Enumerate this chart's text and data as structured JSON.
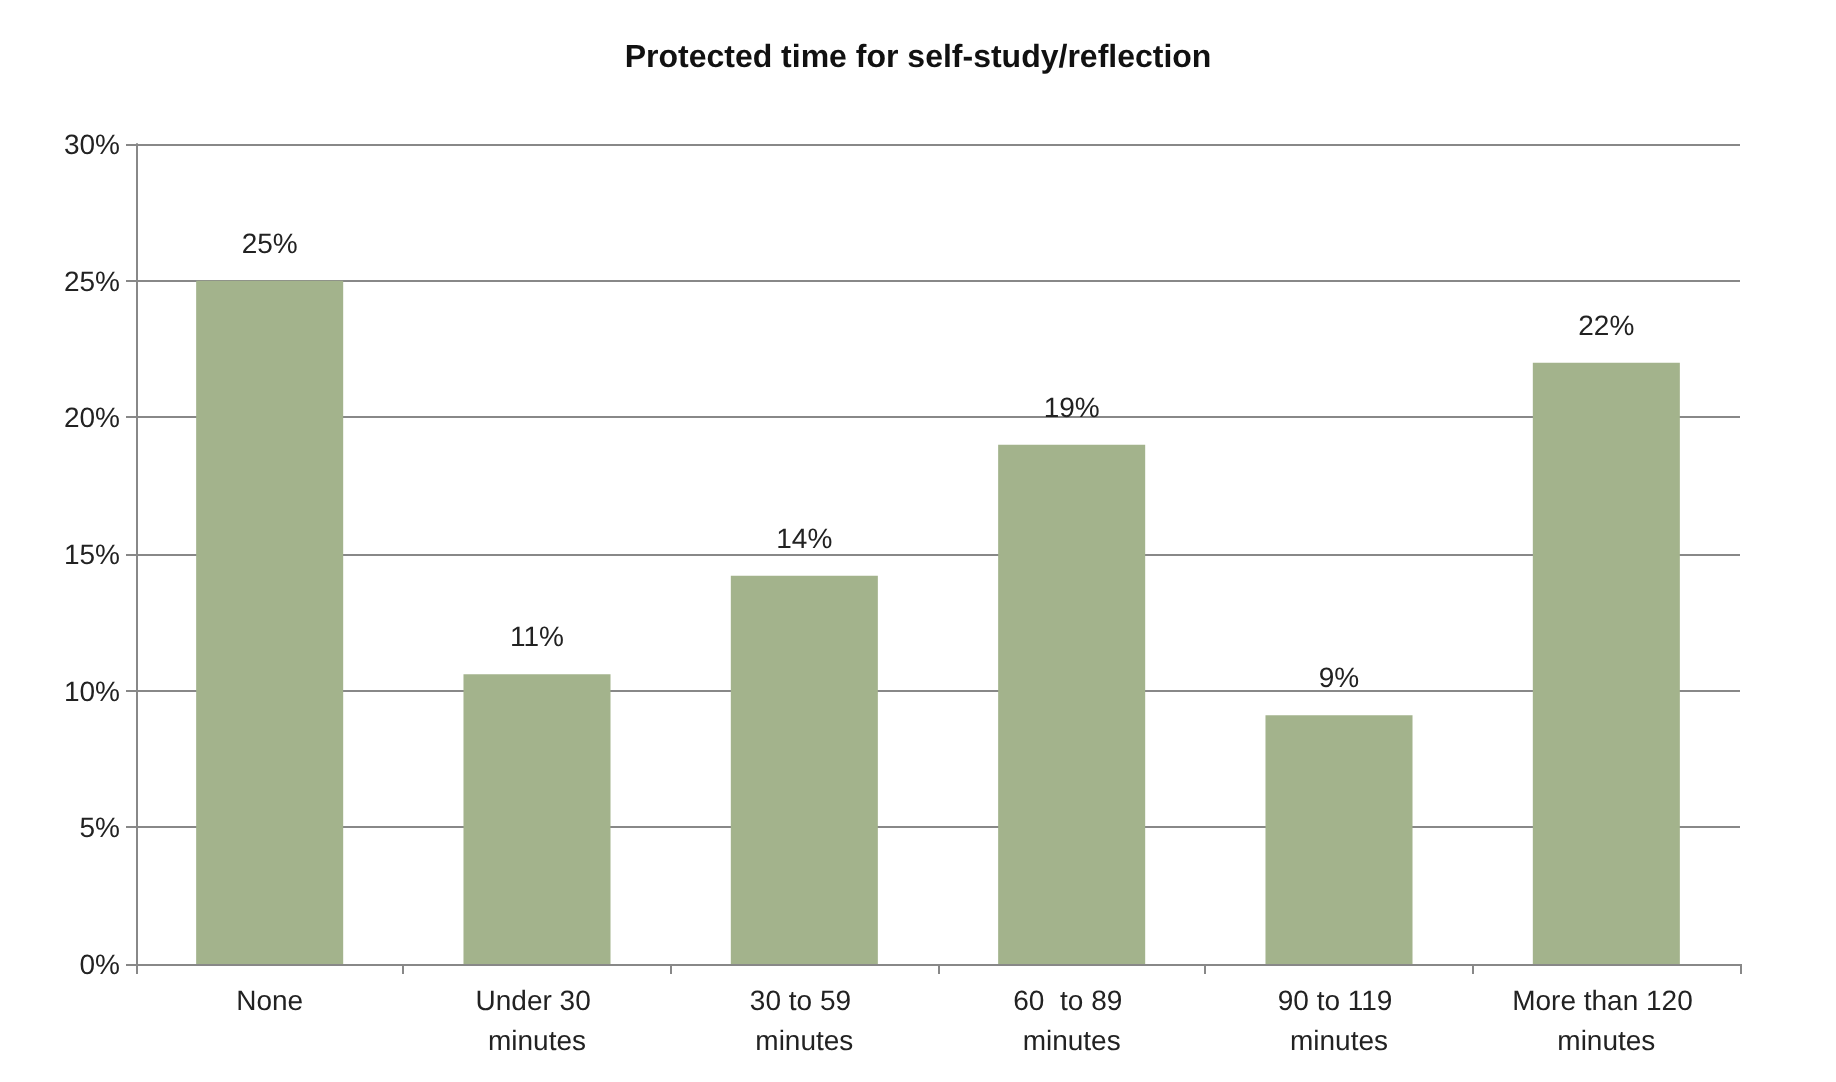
{
  "chart_data": {
    "type": "bar",
    "title": "Protected time for self-study/reflection",
    "categories": [
      "None",
      "Under 30 minutes",
      "30 to 59 minutes",
      "60  to 89 minutes",
      "90 to 119 minutes",
      "More than 120 minutes"
    ],
    "values": [
      25,
      10.6,
      14.2,
      19,
      9.1,
      22
    ],
    "value_labels": [
      "25%",
      "11%",
      "14%",
      "19%",
      "9%",
      "22%"
    ],
    "color": "#a3b38c",
    "ylim": [
      0,
      30
    ],
    "yticks": [
      {
        "value": 0,
        "label": "0%"
      },
      {
        "value": 5,
        "label": "5%"
      },
      {
        "value": 10,
        "label": "10%"
      },
      {
        "value": 15,
        "label": "15%"
      },
      {
        "value": 20,
        "label": "20%"
      },
      {
        "value": 25,
        "label": "25%"
      },
      {
        "value": 30,
        "label": "30%"
      }
    ],
    "grid": true
  }
}
